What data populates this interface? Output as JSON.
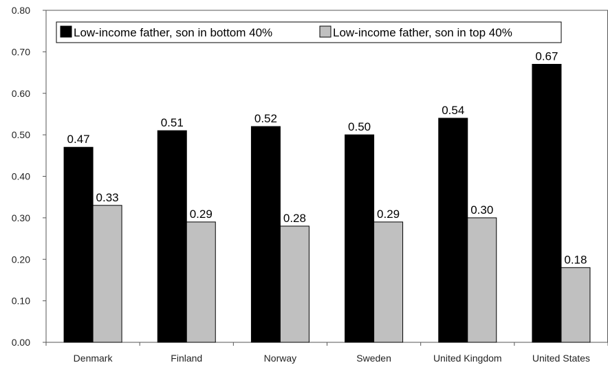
{
  "chart_data": {
    "type": "bar",
    "categories": [
      "Denmark",
      "Finland",
      "Norway",
      "Sweden",
      "United Kingdom",
      "United States"
    ],
    "series": [
      {
        "name": "Low-income father, son in bottom 40%",
        "values": [
          0.47,
          0.51,
          0.52,
          0.5,
          0.54,
          0.67
        ],
        "labels": [
          "0.47",
          "0.51",
          "0.52",
          "0.50",
          "0.54",
          "0.67"
        ],
        "color": "#000000"
      },
      {
        "name": "Low-income father, son in top 40%",
        "values": [
          0.33,
          0.29,
          0.28,
          0.29,
          0.3,
          0.18
        ],
        "labels": [
          "0.33",
          "0.29",
          "0.28",
          "0.29",
          "0.30",
          "0.18"
        ],
        "color": "#c0c0c0"
      }
    ],
    "title": "",
    "xlabel": "",
    "ylabel": "",
    "ylim": [
      0,
      0.8
    ],
    "yticks": [
      0,
      0.1,
      0.2,
      0.3,
      0.4,
      0.5,
      0.6,
      0.7,
      0.8
    ],
    "ytick_labels": [
      "0.00",
      "0.10",
      "0.20",
      "0.30",
      "0.40",
      "0.50",
      "0.60",
      "0.70",
      "0.80"
    ],
    "grid": false,
    "legend_position": "top-left"
  }
}
